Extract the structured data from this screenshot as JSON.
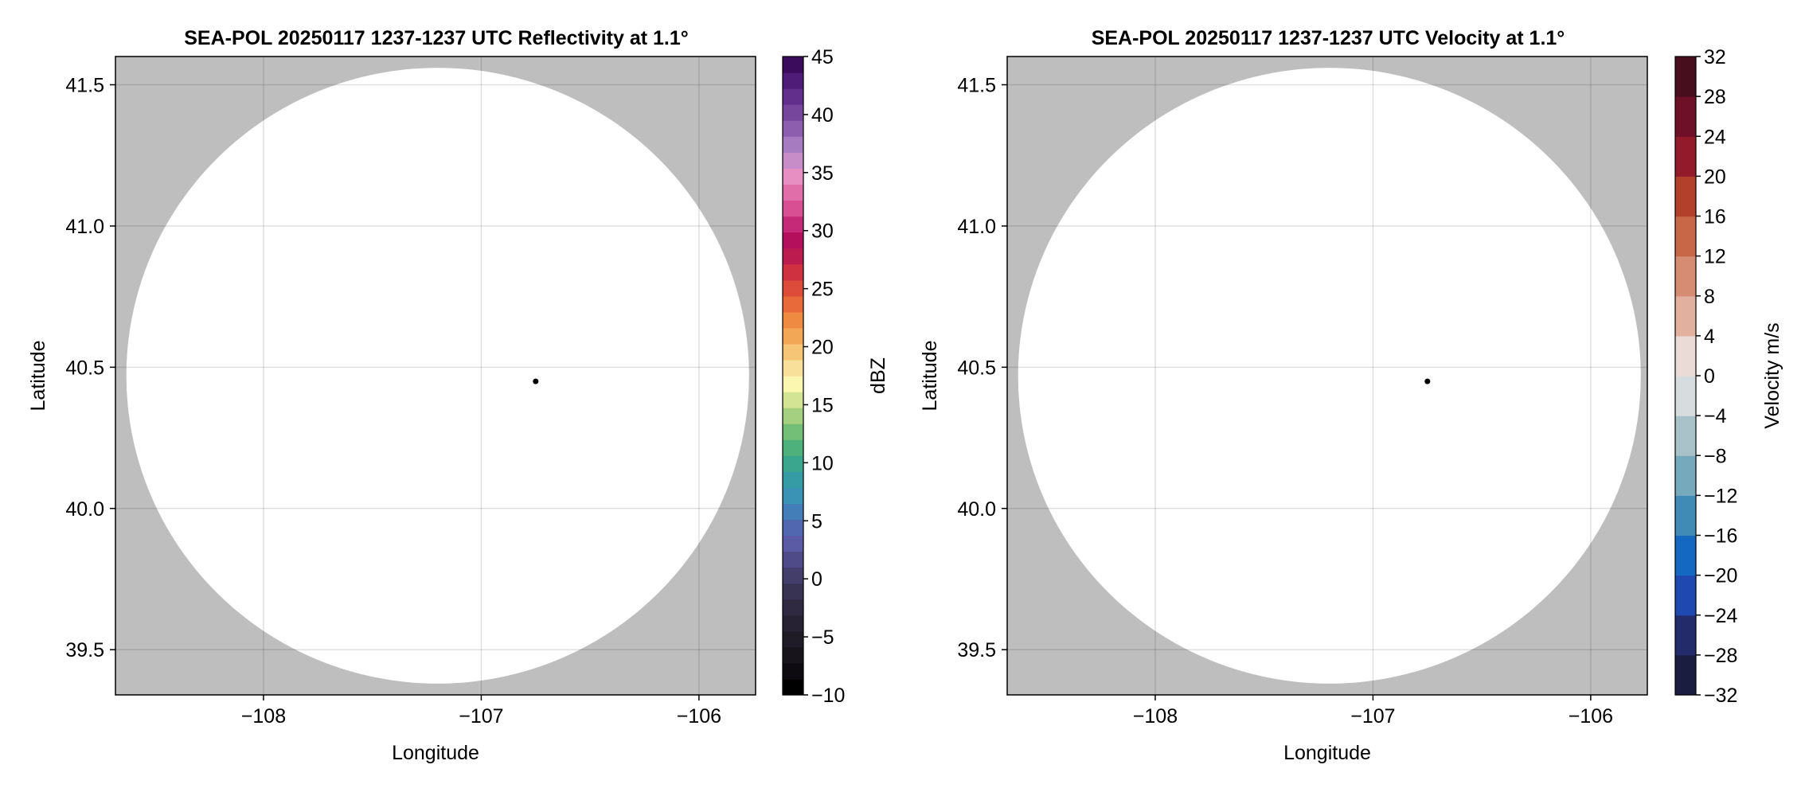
{
  "chart_data": [
    {
      "type": "heatmap",
      "title": "SEA-POL 20250117 1237-1237 UTC Reflectivity at 1.1°",
      "xlabel": "Longitude",
      "ylabel": "Latitude",
      "xlim": [
        -108.68,
        -105.74
      ],
      "ylim": [
        39.34,
        41.6
      ],
      "x_ticks": [
        -108,
        -107,
        -106
      ],
      "x_tick_labels": [
        "−108",
        "−107",
        "−106"
      ],
      "y_ticks": [
        39.5,
        40.0,
        40.5,
        41.0,
        41.5
      ],
      "y_tick_labels": [
        "39.5",
        "40.0",
        "40.5",
        "41.0",
        "41.5"
      ],
      "grid": true,
      "background_color": "#bebebe",
      "coverage_color": "#ffffff",
      "coverage_circle": {
        "center_lon": -107.2,
        "center_lat": 40.47,
        "radius_lon": 1.43,
        "radius_lat": 1.09
      },
      "radar_site": {
        "lon": -106.75,
        "lat": 40.45
      },
      "colorbar": {
        "label": "dBZ",
        "range": [
          -10,
          45
        ],
        "ticks": [
          45,
          40,
          35,
          30,
          25,
          20,
          15,
          10,
          5,
          0,
          -5,
          -10
        ],
        "tick_labels": [
          "45",
          "40",
          "35",
          "30",
          "25",
          "20",
          "15",
          "10",
          "5",
          "0",
          "−5",
          "−10"
        ],
        "colors": [
          "#000000",
          "#0d0b10",
          "#17141c",
          "#1f1c28",
          "#272233",
          "#2f2a42",
          "#383353",
          "#433e6a",
          "#4e4b88",
          "#5a5aa5",
          "#5168b0",
          "#447eb8",
          "#3a93b5",
          "#359ca5",
          "#3aa68e",
          "#4eb17b",
          "#73bf78",
          "#a5d07f",
          "#d3e495",
          "#fbf6b0",
          "#f9e09a",
          "#f6c676",
          "#f2a757",
          "#ee8a42",
          "#e8693a",
          "#dd4b3a",
          "#cf3141",
          "#bc1b4f",
          "#b40f5c",
          "#c42a78",
          "#d94f94",
          "#e06fa9",
          "#e78fc3",
          "#c68dc9",
          "#a77bbf",
          "#8d5ead",
          "#76469d",
          "#62308c",
          "#4f1d78",
          "#3a0c5b"
        ]
      }
    },
    {
      "type": "heatmap",
      "title": "SEA-POL 20250117 1237-1237 UTC Velocity at 1.1°",
      "xlabel": "Longitude",
      "ylabel": "Latitude",
      "xlim": [
        -108.68,
        -105.74
      ],
      "ylim": [
        39.34,
        41.6
      ],
      "x_ticks": [
        -108,
        -107,
        -106
      ],
      "x_tick_labels": [
        "−108",
        "−107",
        "−106"
      ],
      "y_ticks": [
        39.5,
        40.0,
        40.5,
        41.0,
        41.5
      ],
      "y_tick_labels": [
        "39.5",
        "40.0",
        "40.5",
        "41.0",
        "41.5"
      ],
      "grid": true,
      "background_color": "#bebebe",
      "coverage_color": "#ffffff",
      "coverage_circle": {
        "center_lon": -107.2,
        "center_lat": 40.47,
        "radius_lon": 1.43,
        "radius_lat": 1.09
      },
      "radar_site": {
        "lon": -106.75,
        "lat": 40.45
      },
      "colorbar": {
        "label": "Velocity m/s",
        "range": [
          -32,
          32
        ],
        "ticks": [
          32,
          28,
          24,
          20,
          16,
          12,
          8,
          4,
          0,
          -4,
          -8,
          -12,
          -16,
          -20,
          -24,
          -28,
          -32
        ],
        "tick_labels": [
          "32",
          "28",
          "24",
          "20",
          "16",
          "12",
          "8",
          "4",
          "0",
          "−4",
          "−8",
          "−12",
          "−16",
          "−20",
          "−24",
          "−28",
          "−32"
        ],
        "colors": [
          "#1a1c40",
          "#232b6b",
          "#1f48b0",
          "#1568c1",
          "#3f8bb6",
          "#77a9bd",
          "#a9c2c9",
          "#d7dcdf",
          "#eadbd7",
          "#e1b09f",
          "#d68b73",
          "#c76748",
          "#b3402a",
          "#921a2b",
          "#6e1027",
          "#470e1d"
        ]
      }
    }
  ]
}
